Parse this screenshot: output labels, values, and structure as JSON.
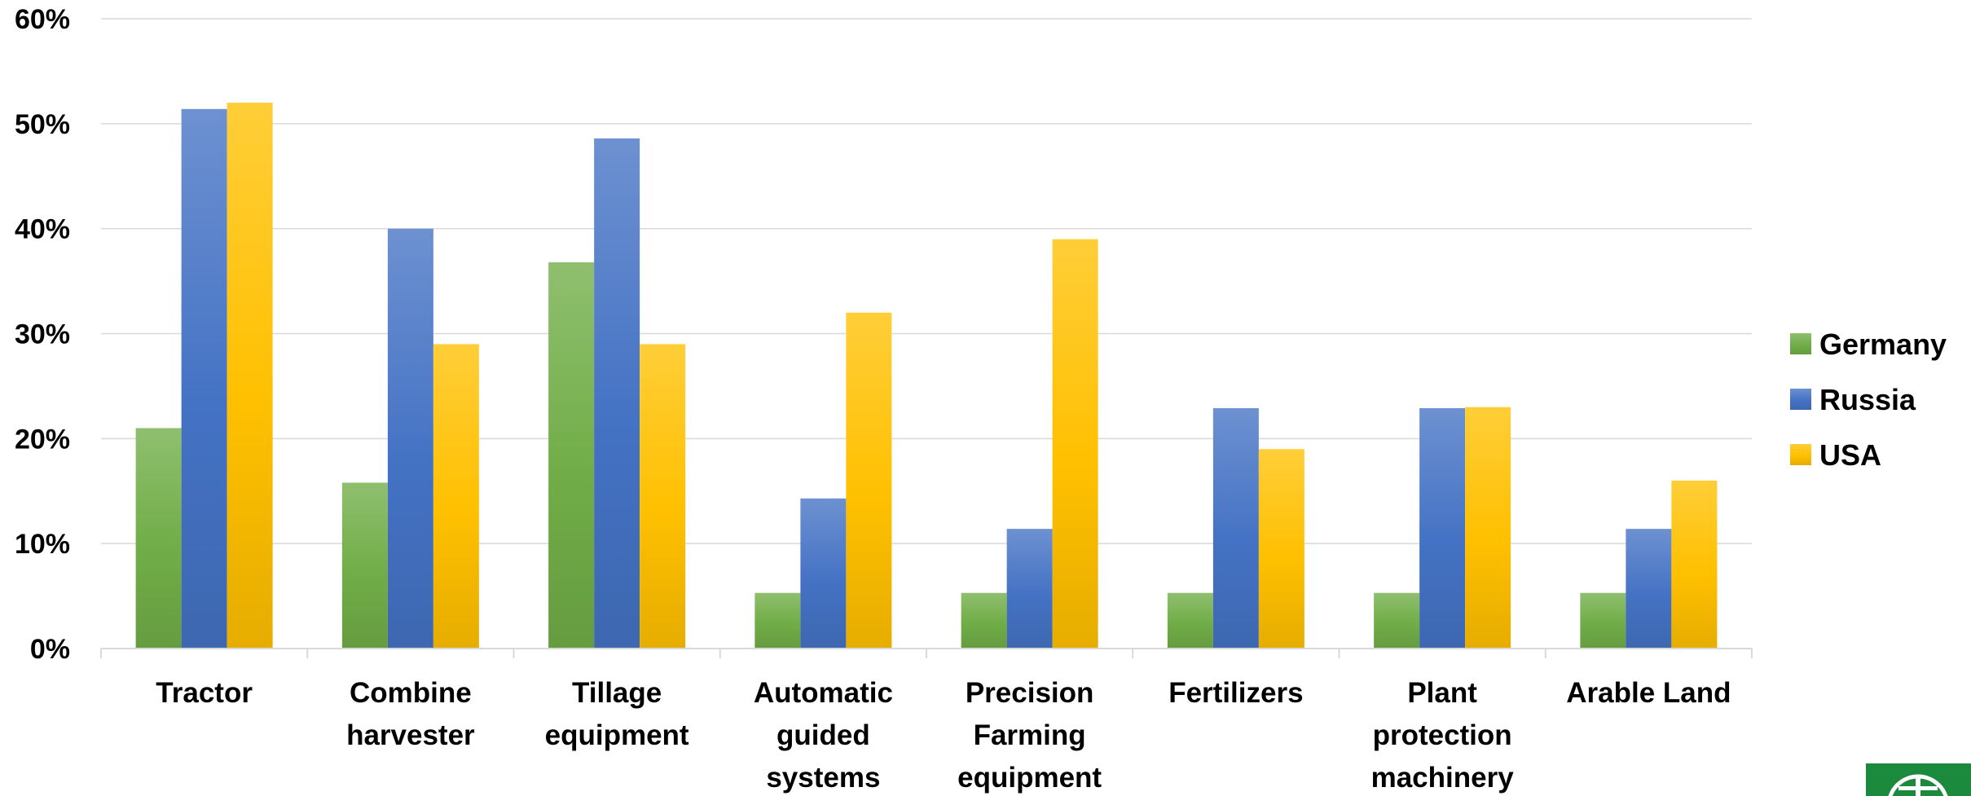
{
  "chart_data": {
    "type": "bar",
    "categories": [
      [
        "Tractor"
      ],
      [
        "Combine",
        "harvester"
      ],
      [
        "Tillage",
        "equipment"
      ],
      [
        "Automatic",
        "guided",
        "systems"
      ],
      [
        "Precision",
        "Farming",
        "equipment"
      ],
      [
        "Fertilizers"
      ],
      [
        "Plant",
        "protection",
        "machinery"
      ],
      [
        "Arable Land"
      ]
    ],
    "series": [
      {
        "name": "Germany",
        "color": "#70AD47",
        "values": [
          0.21,
          0.158,
          0.368,
          0.053,
          0.053,
          0.053,
          0.053,
          0.053
        ]
      },
      {
        "name": "Russia",
        "color": "#4472C4",
        "values": [
          0.514,
          0.4,
          0.486,
          0.143,
          0.114,
          0.229,
          0.229,
          0.114
        ]
      },
      {
        "name": "USA",
        "color": "#FFC000",
        "values": [
          0.52,
          0.29,
          0.29,
          0.32,
          0.39,
          0.19,
          0.23,
          0.16
        ]
      }
    ],
    "y_ticks": [
      "0%",
      "10%",
      "20%",
      "30%",
      "40%",
      "50%",
      "60%"
    ],
    "ylim": [
      0,
      0.6
    ],
    "grid": true,
    "legend_position": "right",
    "title": "",
    "xlabel": "",
    "ylabel": ""
  },
  "logo": {
    "icon": "company-logo-icon",
    "color": "#1B8A3C"
  }
}
